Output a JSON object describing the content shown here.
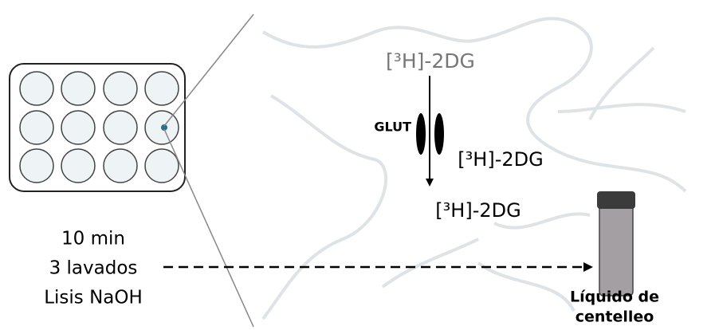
{
  "labels": {
    "tracer_outside": "[³H]-2DG",
    "transporter": "GLUT",
    "tracer_membrane": "[³H]-2DG",
    "tracer_inside": "[³H]-2DG"
  },
  "protocol": {
    "steps": [
      "10 min",
      "3 lavados",
      "Lisis NaOH"
    ]
  },
  "vial": {
    "label": [
      "Líquido de",
      "centelleo"
    ]
  }
}
